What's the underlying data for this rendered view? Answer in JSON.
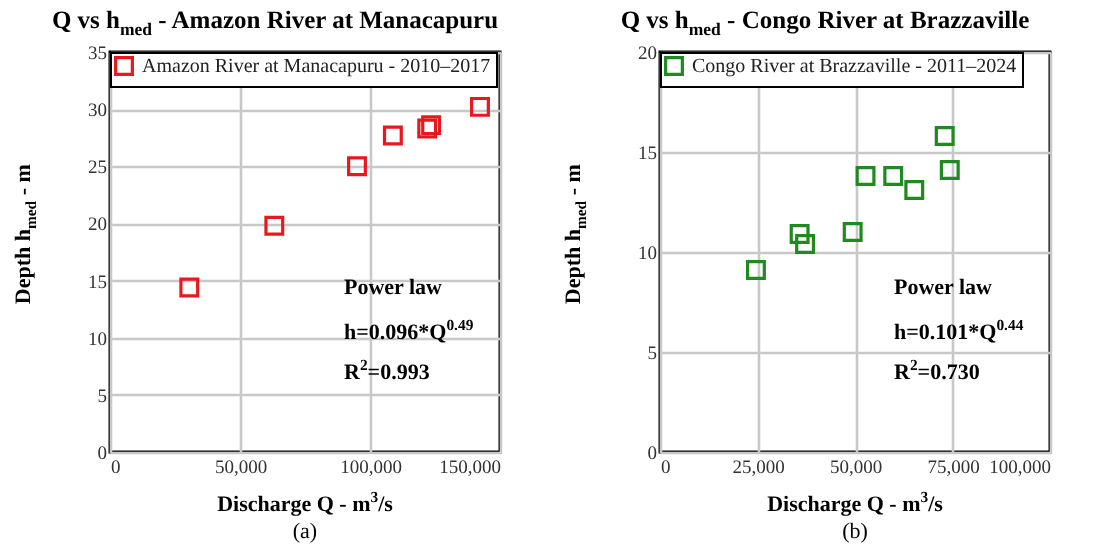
{
  "chart_data": [
    {
      "type": "scatter",
      "title": "Q vs h$_{med}$ -  Amazon River at Manacapuru",
      "xlabel": "Discharge Q - m$^{3}$/s",
      "ylabel": "Depth h$_{med}$ - m",
      "x": [
        30500,
        63200,
        95000,
        108800,
        122000,
        123500,
        142300
      ],
      "series": [
        {
          "name": "Amazon River at Manacapuru - 2010–2017",
          "color": "#e8191e",
          "values": [
            14.4,
            19.8,
            25.0,
            27.7,
            28.3,
            28.6,
            30.2
          ]
        }
      ],
      "xlim": [
        0,
        150000
      ],
      "xticks": [
        0,
        {
          "value": 50000,
          "label": "50,000"
        },
        {
          "value": 100000,
          "label": "100,000"
        },
        {
          "value": 150000,
          "label": "150,000"
        }
      ],
      "ylim": [
        0,
        35
      ],
      "yticks": [
        0,
        5,
        10,
        15,
        20,
        25,
        30,
        35
      ],
      "grid": true,
      "legend": "top",
      "marker": "square",
      "annotations": [
        "Power law",
        "h=0.096*Q$^{0.49}$",
        "R$^{2}$=0.993",
        "(a)"
      ]
    },
    {
      "type": "scatter",
      "title": "Q vs h$_{med}$ -  Congo River at Brazzaville",
      "xlabel": "Discharge Q - m$^{3}$/s",
      "ylabel": "Depth h$_{med}$ - m",
      "x": [
        24600,
        35800,
        37200,
        49400,
        52700,
        59800,
        65200,
        73000,
        74300
      ],
      "series": [
        {
          "name": "Congo River at Brazzaville - 2011–2024",
          "color": "#1f8a1f",
          "values": [
            9.1,
            10.9,
            10.4,
            11.0,
            13.8,
            13.8,
            13.1,
            15.8,
            14.1
          ]
        }
      ],
      "xlim": [
        0,
        100000
      ],
      "xticks": [
        0,
        {
          "value": 25000,
          "label": "25,000"
        },
        {
          "value": 50000,
          "label": "50,000"
        },
        {
          "value": 75000,
          "label": "75,000"
        },
        {
          "value": 100000,
          "label": "100,000"
        }
      ],
      "ylim": [
        0,
        20
      ],
      "yticks": [
        0,
        5,
        10,
        15,
        20
      ],
      "grid": true,
      "legend": "top",
      "marker": "square",
      "annotations": [
        "Power law",
        "h=0.101*Q$^{0.44}$",
        "R$^{2}$=0.730",
        "(b)"
      ]
    }
  ]
}
